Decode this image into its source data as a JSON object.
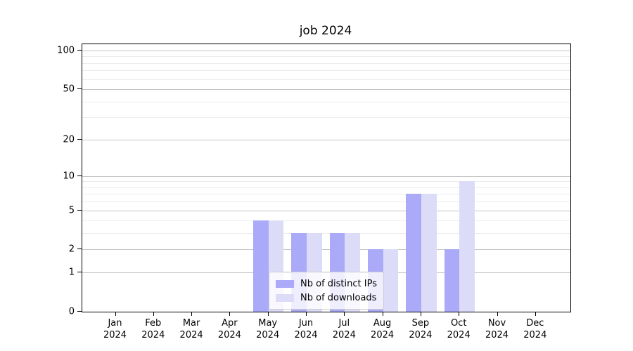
{
  "chart_data": {
    "type": "bar",
    "title": "job 2024",
    "categories": [
      "Jan",
      "Feb",
      "Mar",
      "Apr",
      "May",
      "Jun",
      "Jul",
      "Aug",
      "Sep",
      "Oct",
      "Nov",
      "Dec"
    ],
    "category_year": "2024",
    "series": [
      {
        "name": "Nb of distinct IPs",
        "color": "#aaaaf8",
        "values": [
          0,
          0,
          0,
          0,
          4,
          3,
          3,
          2,
          7,
          2,
          0,
          0
        ]
      },
      {
        "name": "Nb of downloads",
        "color": "#dcdcf9",
        "values": [
          0,
          0,
          0,
          0,
          4,
          3,
          3,
          2,
          7,
          9,
          0,
          0
        ]
      }
    ],
    "y_axis": {
      "scale": "log10(1+v)",
      "tick_labels": [
        0,
        1,
        2,
        5,
        10,
        20,
        50,
        100
      ],
      "minor_gridlines": [
        3,
        4,
        6,
        7,
        8,
        9,
        30,
        40,
        60,
        70,
        80,
        90
      ],
      "top_value": 112
    },
    "legend": {
      "position": "lower center"
    },
    "grid": true,
    "colors": {
      "major_grid": "#c4c4c4",
      "minor_grid": "#ececec",
      "axis": "#000000",
      "background": "#ffffff"
    }
  }
}
